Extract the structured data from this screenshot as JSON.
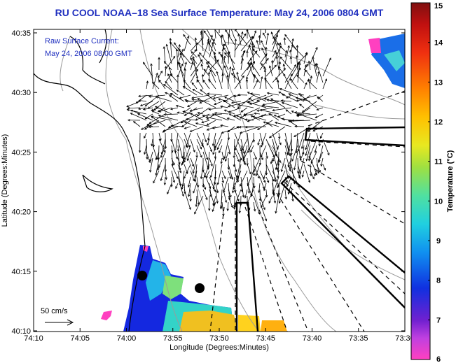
{
  "title": "RU COOL  NOAA–18  Sea Surface Temperature:  May 24, 2006 0804 GMT",
  "annotation": {
    "line1": "Raw Surface Current:",
    "line2": "May 24, 2006 08:00 GMT"
  },
  "scale_label": "50 cm/s",
  "axes": {
    "xlabel": "Longitude (Degrees:Minutes)",
    "ylabel": "Latitude (Degrees:Minutes)",
    "xticks": [
      "74:10",
      "74:05",
      "74:00",
      "73:55",
      "73:50",
      "73:45",
      "73:40",
      "73:35",
      "73:30"
    ],
    "yticks": [
      "40:35",
      "40:30",
      "40:25",
      "40:20",
      "40:15",
      "40:10"
    ]
  },
  "colorbar": {
    "label": "Temperature (°C)",
    "ticks": [
      "15",
      "14",
      "13",
      "12",
      "11",
      "10",
      "9",
      "8",
      "7",
      "6"
    ],
    "range": [
      6,
      15
    ]
  },
  "colors": {
    "title": "#1f2fbf",
    "annotation": "#1f2fbf"
  }
}
